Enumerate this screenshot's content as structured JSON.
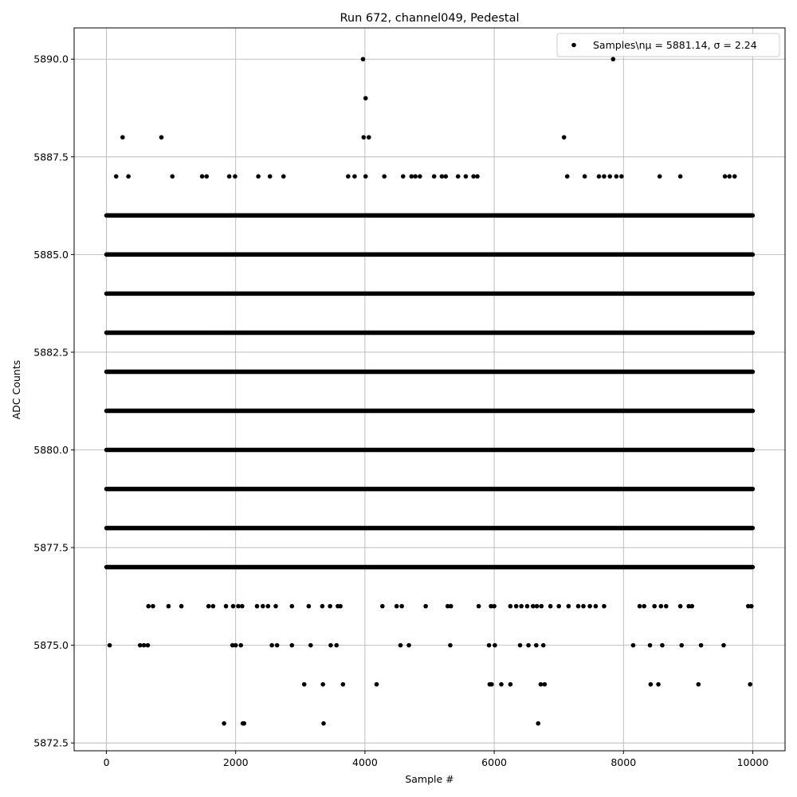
{
  "chart_data": {
    "type": "scatter",
    "title": "Run 672, channel049, Pedestal",
    "xlabel": "Sample #",
    "ylabel": "ADC Counts",
    "xlim": [
      -500,
      10500
    ],
    "ylim": [
      5872.3,
      5890.8
    ],
    "xticks": [
      0,
      2000,
      4000,
      6000,
      8000,
      10000
    ],
    "xtick_labels": [
      "0",
      "2000",
      "4000",
      "6000",
      "8000",
      "10000"
    ],
    "yticks": [
      5872.5,
      5875.0,
      5877.5,
      5880.0,
      5882.5,
      5885.0,
      5887.5,
      5890.0
    ],
    "ytick_labels": [
      "5872.5",
      "5875.0",
      "5877.5",
      "5880.0",
      "5882.5",
      "5885.0",
      "5887.5",
      "5890.0"
    ],
    "grid": true,
    "legend_position": "top-right",
    "series": [
      {
        "name": "Samples\\nμ = 5881.14, σ = 2.24",
        "color": "#000000",
        "marker": "circle",
        "x_range": [
          0,
          9999
        ],
        "n_points": 10000,
        "mean": 5881.14,
        "std": 2.24,
        "dense_levels": [
          5877,
          5878,
          5879,
          5880,
          5881,
          5882,
          5883,
          5884,
          5885,
          5886
        ],
        "points": [
          [
            50,
            5875
          ],
          [
            520,
            5875
          ],
          [
            580,
            5875
          ],
          [
            640,
            5875
          ],
          [
            1950,
            5875
          ],
          [
            2000,
            5875
          ],
          [
            2080,
            5875
          ],
          [
            2560,
            5875
          ],
          [
            2640,
            5875
          ],
          [
            2870,
            5875
          ],
          [
            3160,
            5875
          ],
          [
            3470,
            5875
          ],
          [
            3560,
            5875
          ],
          [
            4550,
            5875
          ],
          [
            4680,
            5875
          ],
          [
            5320,
            5875
          ],
          [
            5920,
            5875
          ],
          [
            6010,
            5875
          ],
          [
            6400,
            5875
          ],
          [
            6530,
            5875
          ],
          [
            6650,
            5875
          ],
          [
            6760,
            5875
          ],
          [
            8150,
            5875
          ],
          [
            8410,
            5875
          ],
          [
            8600,
            5875
          ],
          [
            8900,
            5875
          ],
          [
            9200,
            5875
          ],
          [
            9550,
            5875
          ],
          [
            3060,
            5874
          ],
          [
            3350,
            5874
          ],
          [
            3660,
            5874
          ],
          [
            4180,
            5874
          ],
          [
            5930,
            5874
          ],
          [
            5960,
            5874
          ],
          [
            6110,
            5874
          ],
          [
            6250,
            5874
          ],
          [
            6720,
            5874
          ],
          [
            6780,
            5874
          ],
          [
            8420,
            5874
          ],
          [
            8540,
            5874
          ],
          [
            9160,
            5874
          ],
          [
            9960,
            5874
          ],
          [
            1820,
            5873
          ],
          [
            2110,
            5873
          ],
          [
            2130,
            5873
          ],
          [
            3360,
            5873
          ],
          [
            6680,
            5873
          ],
          [
            250,
            5888
          ],
          [
            850,
            5888
          ],
          [
            3980,
            5888
          ],
          [
            4060,
            5888
          ],
          [
            7080,
            5888
          ],
          [
            4010,
            5889
          ],
          [
            3970,
            5890
          ],
          [
            7840,
            5890
          ],
          [
            150,
            5887
          ],
          [
            340,
            5887
          ],
          [
            1020,
            5887
          ],
          [
            1480,
            5887
          ],
          [
            1550,
            5887
          ],
          [
            1900,
            5887
          ],
          [
            1990,
            5887
          ],
          [
            2350,
            5887
          ],
          [
            2530,
            5887
          ],
          [
            2740,
            5887
          ],
          [
            3740,
            5887
          ],
          [
            3840,
            5887
          ],
          [
            4010,
            5887
          ],
          [
            4300,
            5887
          ],
          [
            4590,
            5887
          ],
          [
            4720,
            5887
          ],
          [
            4780,
            5887
          ],
          [
            4850,
            5887
          ],
          [
            5070,
            5887
          ],
          [
            5190,
            5887
          ],
          [
            5250,
            5887
          ],
          [
            5440,
            5887
          ],
          [
            5560,
            5887
          ],
          [
            5680,
            5887
          ],
          [
            5740,
            5887
          ],
          [
            7130,
            5887
          ],
          [
            7400,
            5887
          ],
          [
            7620,
            5887
          ],
          [
            7700,
            5887
          ],
          [
            7790,
            5887
          ],
          [
            7890,
            5887
          ],
          [
            7970,
            5887
          ],
          [
            8560,
            5887
          ],
          [
            8880,
            5887
          ],
          [
            9570,
            5887
          ],
          [
            9640,
            5887
          ],
          [
            9720,
            5887
          ],
          [
            650,
            5876
          ],
          [
            720,
            5876
          ],
          [
            960,
            5876
          ],
          [
            1160,
            5876
          ],
          [
            1580,
            5876
          ],
          [
            1650,
            5876
          ],
          [
            1850,
            5876
          ],
          [
            1960,
            5876
          ],
          [
            2040,
            5876
          ],
          [
            2100,
            5876
          ],
          [
            2330,
            5876
          ],
          [
            2420,
            5876
          ],
          [
            2500,
            5876
          ],
          [
            2620,
            5876
          ],
          [
            2870,
            5876
          ],
          [
            3130,
            5876
          ],
          [
            3340,
            5876
          ],
          [
            3460,
            5876
          ],
          [
            3580,
            5876
          ],
          [
            3620,
            5876
          ],
          [
            4270,
            5876
          ],
          [
            4490,
            5876
          ],
          [
            4570,
            5876
          ],
          [
            4940,
            5876
          ],
          [
            5280,
            5876
          ],
          [
            5330,
            5876
          ],
          [
            5760,
            5876
          ],
          [
            5950,
            5876
          ],
          [
            6000,
            5876
          ],
          [
            6250,
            5876
          ],
          [
            6340,
            5876
          ],
          [
            6420,
            5876
          ],
          [
            6510,
            5876
          ],
          [
            6600,
            5876
          ],
          [
            6660,
            5876
          ],
          [
            6730,
            5876
          ],
          [
            6870,
            5876
          ],
          [
            7000,
            5876
          ],
          [
            7150,
            5876
          ],
          [
            7300,
            5876
          ],
          [
            7380,
            5876
          ],
          [
            7480,
            5876
          ],
          [
            7570,
            5876
          ],
          [
            7700,
            5876
          ],
          [
            8250,
            5876
          ],
          [
            8320,
            5876
          ],
          [
            8480,
            5876
          ],
          [
            8580,
            5876
          ],
          [
            8660,
            5876
          ],
          [
            8880,
            5876
          ],
          [
            9010,
            5876
          ],
          [
            9060,
            5876
          ],
          [
            9930,
            5876
          ],
          [
            9980,
            5876
          ]
        ]
      }
    ]
  }
}
